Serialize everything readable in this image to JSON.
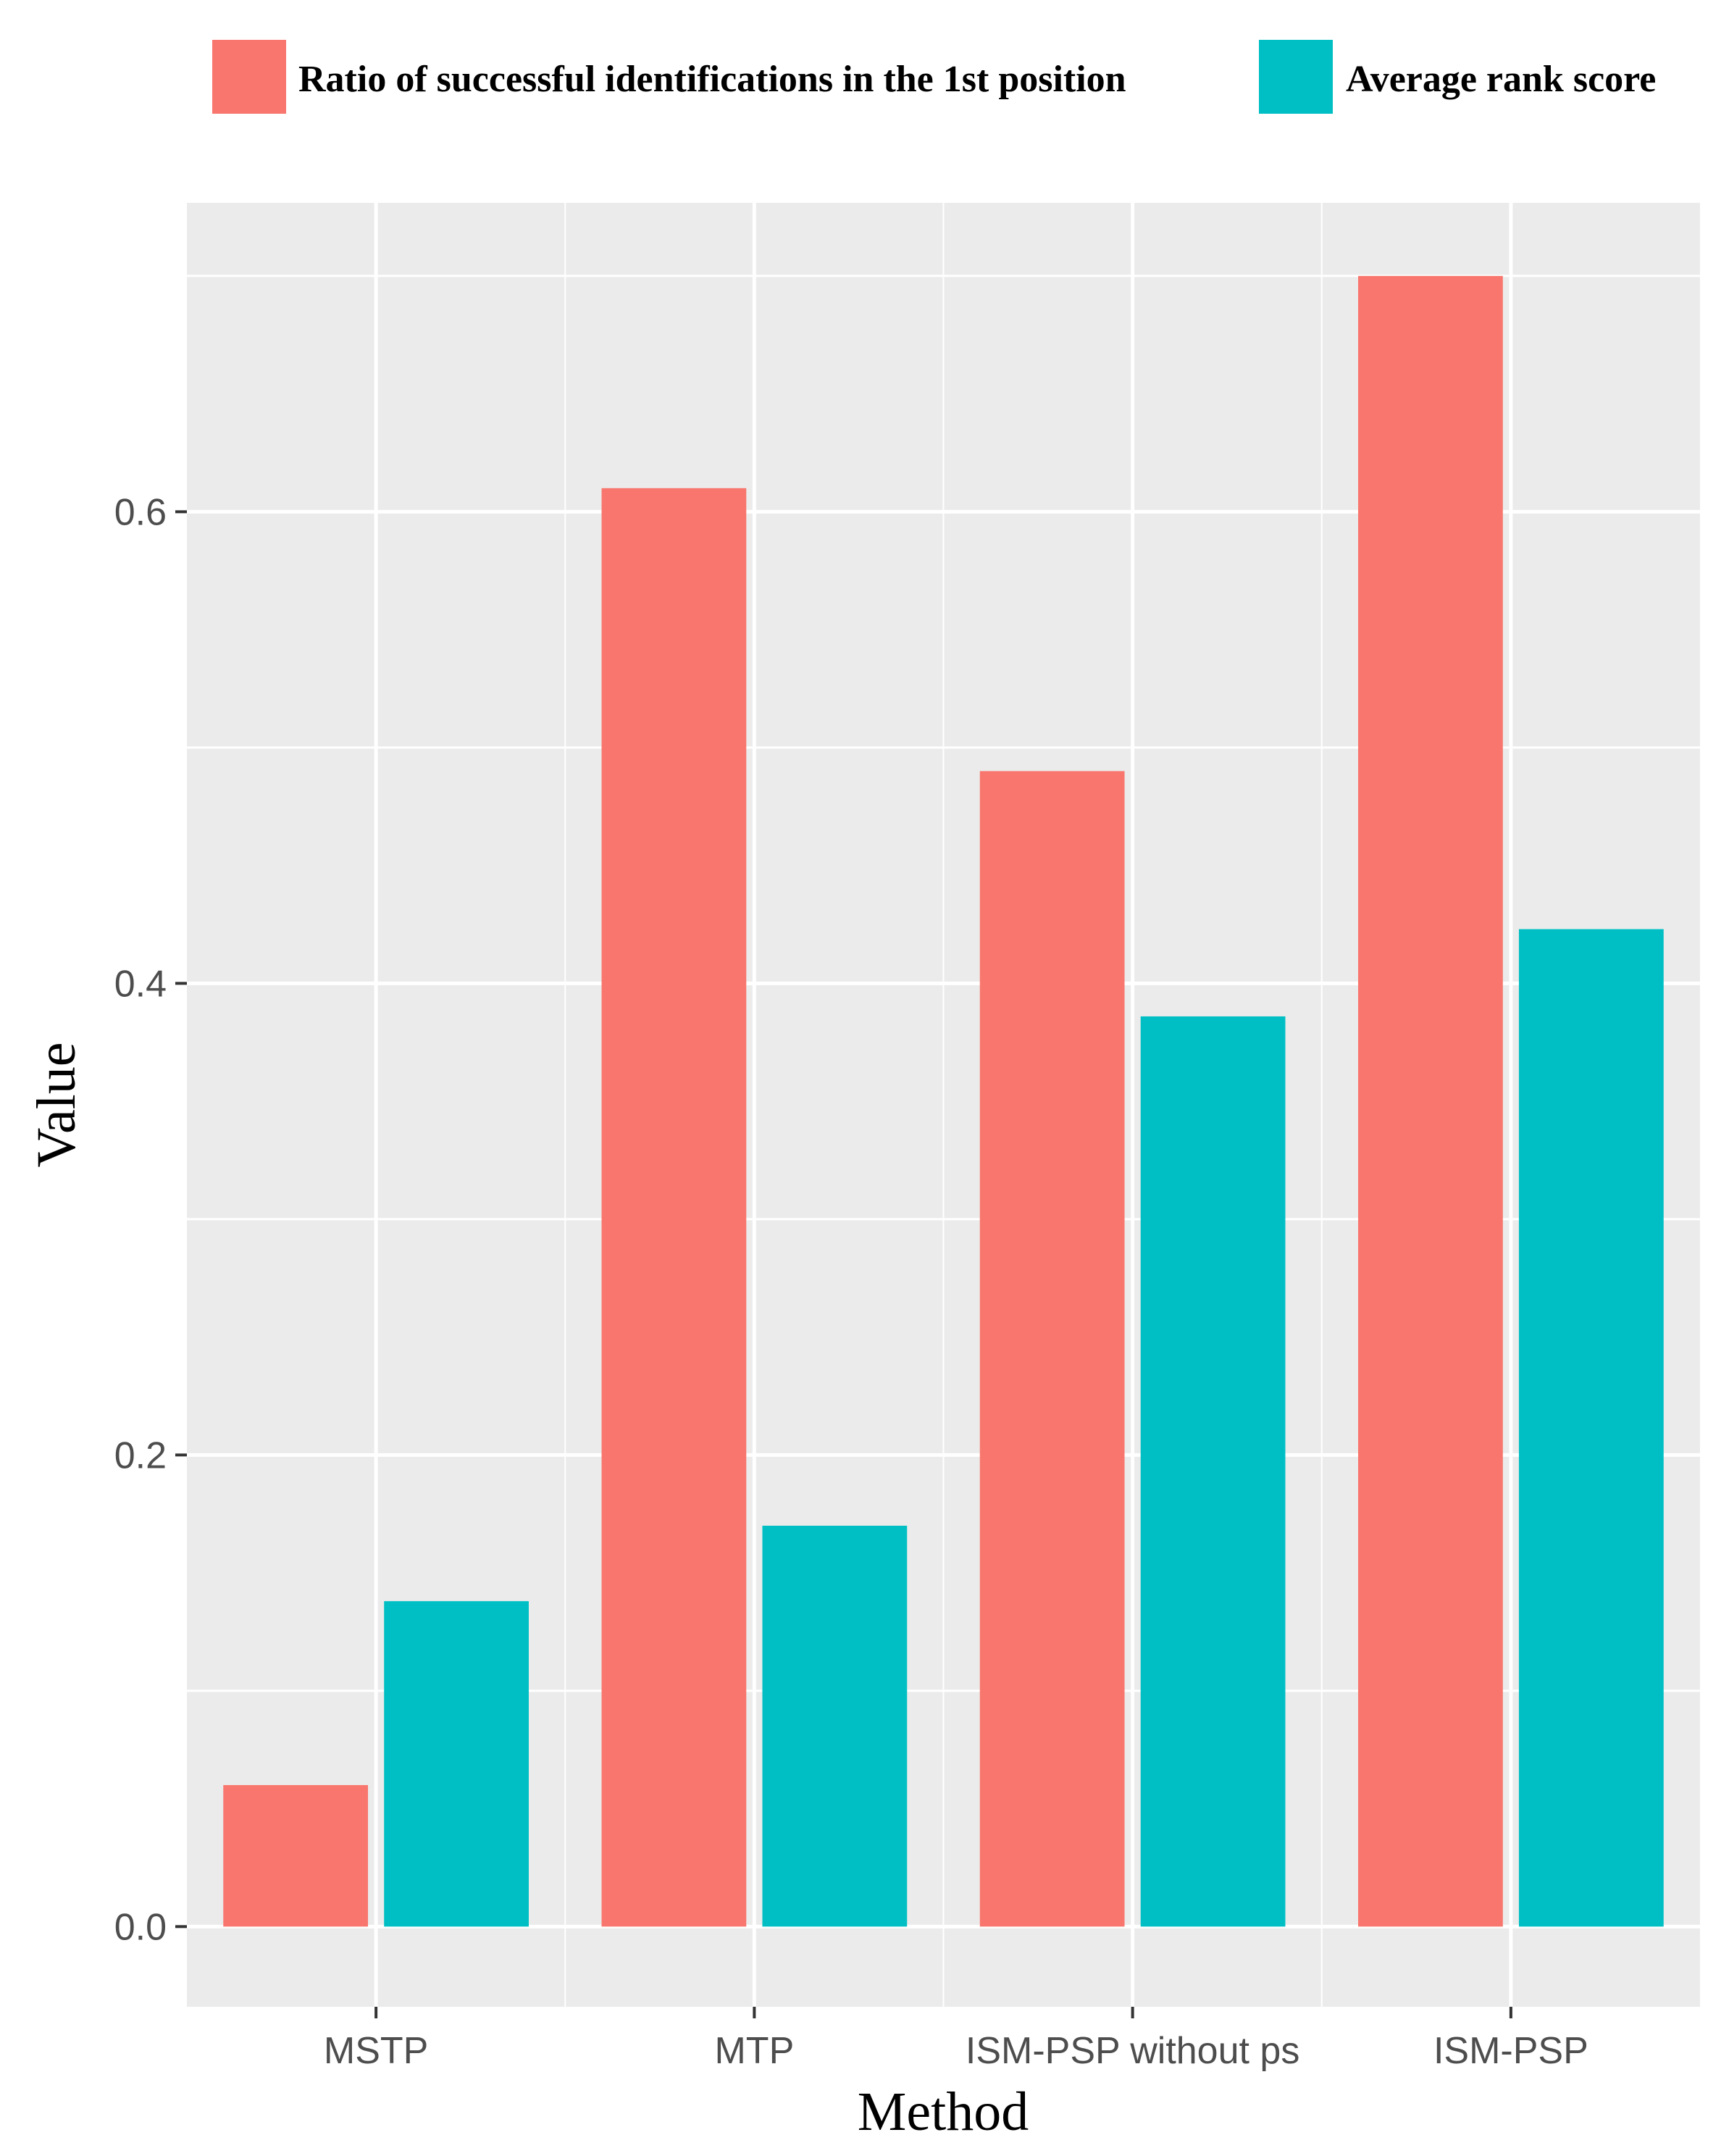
{
  "chart_data": {
    "type": "bar",
    "title": "",
    "xlabel": "Method",
    "ylabel": "Value",
    "categories": [
      "MSTP",
      "MTP",
      "ISM-PSP without ps",
      "ISM-PSP"
    ],
    "series": [
      {
        "name": "Ratio of successful identifications in the 1st position",
        "color": "#F8766D",
        "values": [
          0.06,
          0.61,
          0.49,
          0.7
        ]
      },
      {
        "name": "Average rank score",
        "color": "#00BFC4",
        "values": [
          0.138,
          0.17,
          0.386,
          0.423
        ]
      }
    ],
    "ylim": [
      -0.034,
      0.731
    ],
    "yticks": [
      0.0,
      0.2,
      0.4,
      0.6
    ],
    "ytick_labels": [
      "0.0",
      "0.2",
      "0.4",
      "0.6"
    ],
    "grid": true,
    "legend_position": "top",
    "colors": {
      "panel": "#EBEBEB",
      "grid": "#FFFFFF",
      "tick_text": "#4D4D4D"
    }
  }
}
